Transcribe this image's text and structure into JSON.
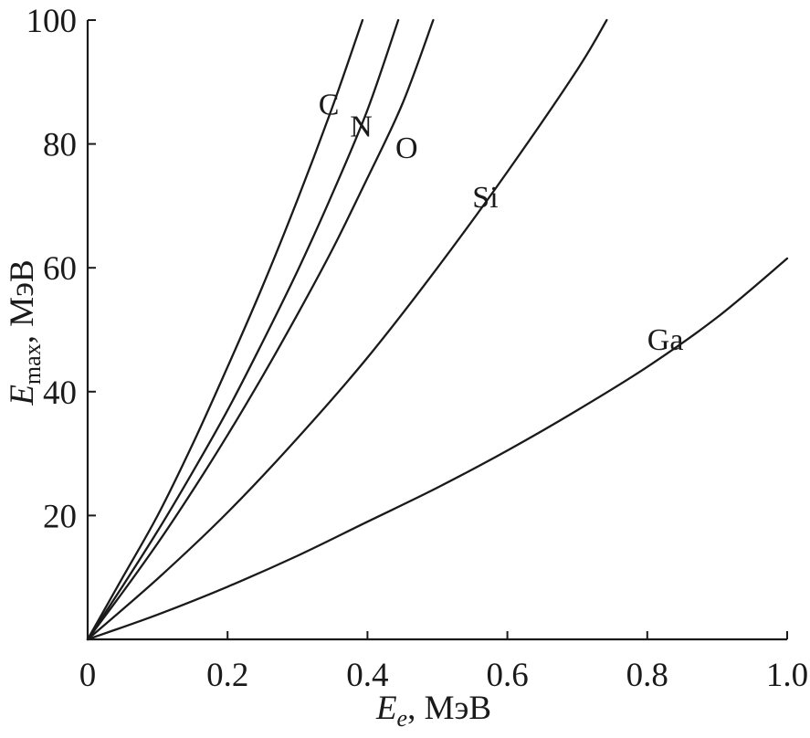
{
  "chart_data": {
    "type": "line",
    "title": "",
    "xlabel": {
      "symbol": "E",
      "subscript": "e",
      "unit": ", МэВ"
    },
    "ylabel": {
      "symbol": "E",
      "subscript": "max",
      "unit": ", МэВ"
    },
    "xlim": [
      0,
      1.0
    ],
    "ylim": [
      0,
      100
    ],
    "grid": false,
    "legend": "none",
    "x_ticks": [
      {
        "value": 0,
        "label": "0"
      },
      {
        "value": 0.2,
        "label": "0.2"
      },
      {
        "value": 0.4,
        "label": "0.4"
      },
      {
        "value": 0.6,
        "label": "0.6"
      },
      {
        "value": 0.8,
        "label": "0.8"
      },
      {
        "value": 1.0,
        "label": "1.0"
      }
    ],
    "y_ticks": [
      {
        "value": 20,
        "label": "20"
      },
      {
        "value": 40,
        "label": "40"
      },
      {
        "value": 60,
        "label": "60"
      },
      {
        "value": 80,
        "label": "80"
      },
      {
        "value": 100,
        "label": "100"
      }
    ],
    "series": [
      {
        "name": "C",
        "x": [
          0,
          0.05,
          0.1,
          0.15,
          0.2,
          0.25,
          0.3,
          0.35,
          0.393
        ],
        "y": [
          0,
          10,
          20,
          31.5,
          44,
          57,
          71,
          86,
          100
        ]
      },
      {
        "name": "N",
        "x": [
          0,
          0.05,
          0.1,
          0.15,
          0.2,
          0.25,
          0.3,
          0.35,
          0.4,
          0.444
        ],
        "y": [
          0,
          8.6,
          17.5,
          27,
          37,
          48,
          59.5,
          72,
          85.5,
          100
        ]
      },
      {
        "name": "O",
        "x": [
          0,
          0.05,
          0.1,
          0.15,
          0.2,
          0.25,
          0.3,
          0.35,
          0.4,
          0.45,
          0.494
        ],
        "y": [
          0,
          7.6,
          15.5,
          24,
          33,
          42.5,
          52.5,
          63,
          74.5,
          86.5,
          100
        ]
      },
      {
        "name": "Si",
        "x": [
          0,
          0.1,
          0.2,
          0.3,
          0.4,
          0.5,
          0.6,
          0.7,
          0.742
        ],
        "y": [
          0,
          9.8,
          20.5,
          32.5,
          45.5,
          60,
          75.5,
          92,
          100
        ]
      },
      {
        "name": "Ga",
        "x": [
          0,
          0.1,
          0.2,
          0.3,
          0.4,
          0.5,
          0.6,
          0.7,
          0.8,
          0.9,
          1.0
        ],
        "y": [
          0,
          4,
          8.5,
          13.5,
          19,
          24.5,
          30.5,
          37,
          44,
          52,
          61.5
        ]
      }
    ],
    "series_labels": [
      {
        "series": "C",
        "text": "C",
        "x": 0.33,
        "y": 86.5
      },
      {
        "series": "N",
        "text": "N",
        "x": 0.375,
        "y": 83
      },
      {
        "series": "O",
        "text": "O",
        "x": 0.44,
        "y": 79.5
      },
      {
        "series": "Si",
        "text": "Si",
        "x": 0.55,
        "y": 71.5
      },
      {
        "series": "Ga",
        "text": "Ga",
        "x": 0.8,
        "y": 48.5
      }
    ],
    "colors": {
      "ink": "#1a1a1a",
      "background": "#ffffff"
    }
  }
}
